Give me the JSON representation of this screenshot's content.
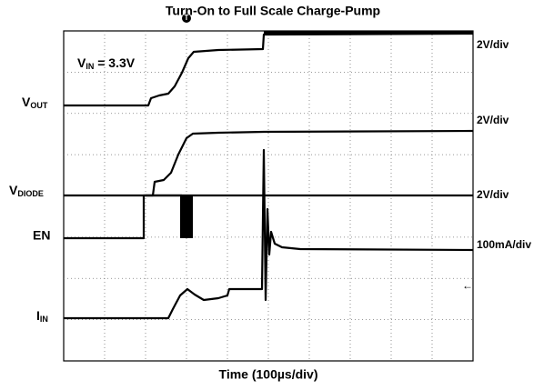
{
  "title": "Turn-On to Full Scale Charge-Pump",
  "x_label": "Time (100µs/div)",
  "annotation": {
    "main": "V",
    "sub": "IN",
    "rest": " = 3.3V"
  },
  "trigger_marker": "T",
  "channel_labels": [
    {
      "main": "V",
      "sub": "OUT"
    },
    {
      "main": "V",
      "sub": "DIODE"
    },
    {
      "main": "EN"
    },
    {
      "main": "I",
      "sub": "IN"
    }
  ],
  "scales": [
    "2V/div",
    "2V/div",
    "2V/div",
    "100mA/div"
  ]
}
